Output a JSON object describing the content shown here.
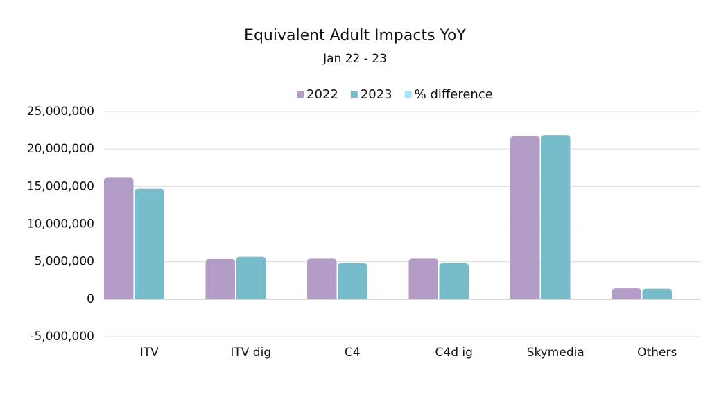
{
  "chart_data": {
    "type": "bar",
    "title": "Equivalent Adult Impacts YoY",
    "subtitle": "Jan 22 - 23",
    "categories": [
      "ITV",
      "ITV dig",
      "C4",
      "C4d ig",
      "Skymedia",
      "Others"
    ],
    "series": [
      {
        "name": "2022",
        "color": "#b39cc6",
        "values": [
          16200000,
          5350000,
          5400000,
          5400000,
          21700000,
          1450000
        ]
      },
      {
        "name": "2023",
        "color": "#77bccb",
        "values": [
          14700000,
          5650000,
          4800000,
          4800000,
          21850000,
          1400000
        ]
      },
      {
        "name": "% difference",
        "color": "#a8e4f5",
        "values": [
          0,
          0,
          0,
          0,
          0,
          0
        ]
      }
    ],
    "ylim": [
      -5000000,
      25000000
    ],
    "yticks": [
      {
        "value": -5000000,
        "label": "-5,000,000"
      },
      0,
      {
        "value": 5000000,
        "label": "5,000,000"
      },
      {
        "value": 10000000,
        "label": "10,000,000"
      },
      {
        "value": 15000000,
        "label": "15,000,000"
      },
      {
        "value": 20000000,
        "label": "20,000,000"
      },
      {
        "value": 25000000,
        "label": "25,000,000"
      }
    ],
    "grid": true,
    "legend": "top"
  }
}
